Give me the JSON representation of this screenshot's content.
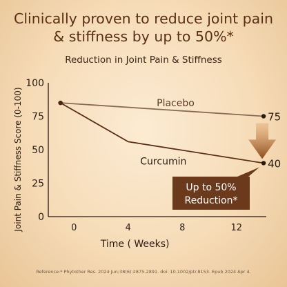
{
  "headline": [
    "Clinically proven to reduce joint pain",
    "& stiffness by up to 50%*"
  ],
  "reference": "Reference:* Phytother Res. 2024 Jun;38(6):2875-2891. doi: 10.1002/ptr.8153. Epub 2024 Apr 4.",
  "colors": {
    "headline": "#5a2f16",
    "placebo_line": "#8a6a55",
    "curcumin_line": "#5a2f16",
    "arrow": "#8c4a1a",
    "callout_bg": "#6b3a1c",
    "callout_text": "#ffffff"
  },
  "chart_data": {
    "type": "line",
    "title": "Reduction in Joint Pain & Stiffness",
    "xlabel": "Time ( Weeks)",
    "ylabel": "Joint Pain & Stiffness Score (0-100)",
    "xlim": [
      -1.9,
      14.2
    ],
    "ylim": [
      0,
      100
    ],
    "xticks": [
      0,
      4,
      8,
      12
    ],
    "yticks": [
      0,
      25,
      50,
      75,
      100
    ],
    "series": [
      {
        "name": "Placebo",
        "x": [
          -1,
          14
        ],
        "y": [
          85,
          75
        ],
        "end_label": "75"
      },
      {
        "name": "Curcumin",
        "x": [
          -1,
          4,
          14
        ],
        "y": [
          85,
          56,
          40
        ],
        "end_label": "40"
      }
    ],
    "annotation": {
      "lines": [
        "Up to 50%",
        "Reduction*"
      ],
      "arrow_direction": "down"
    },
    "grid": false,
    "legend": "inline labels"
  }
}
